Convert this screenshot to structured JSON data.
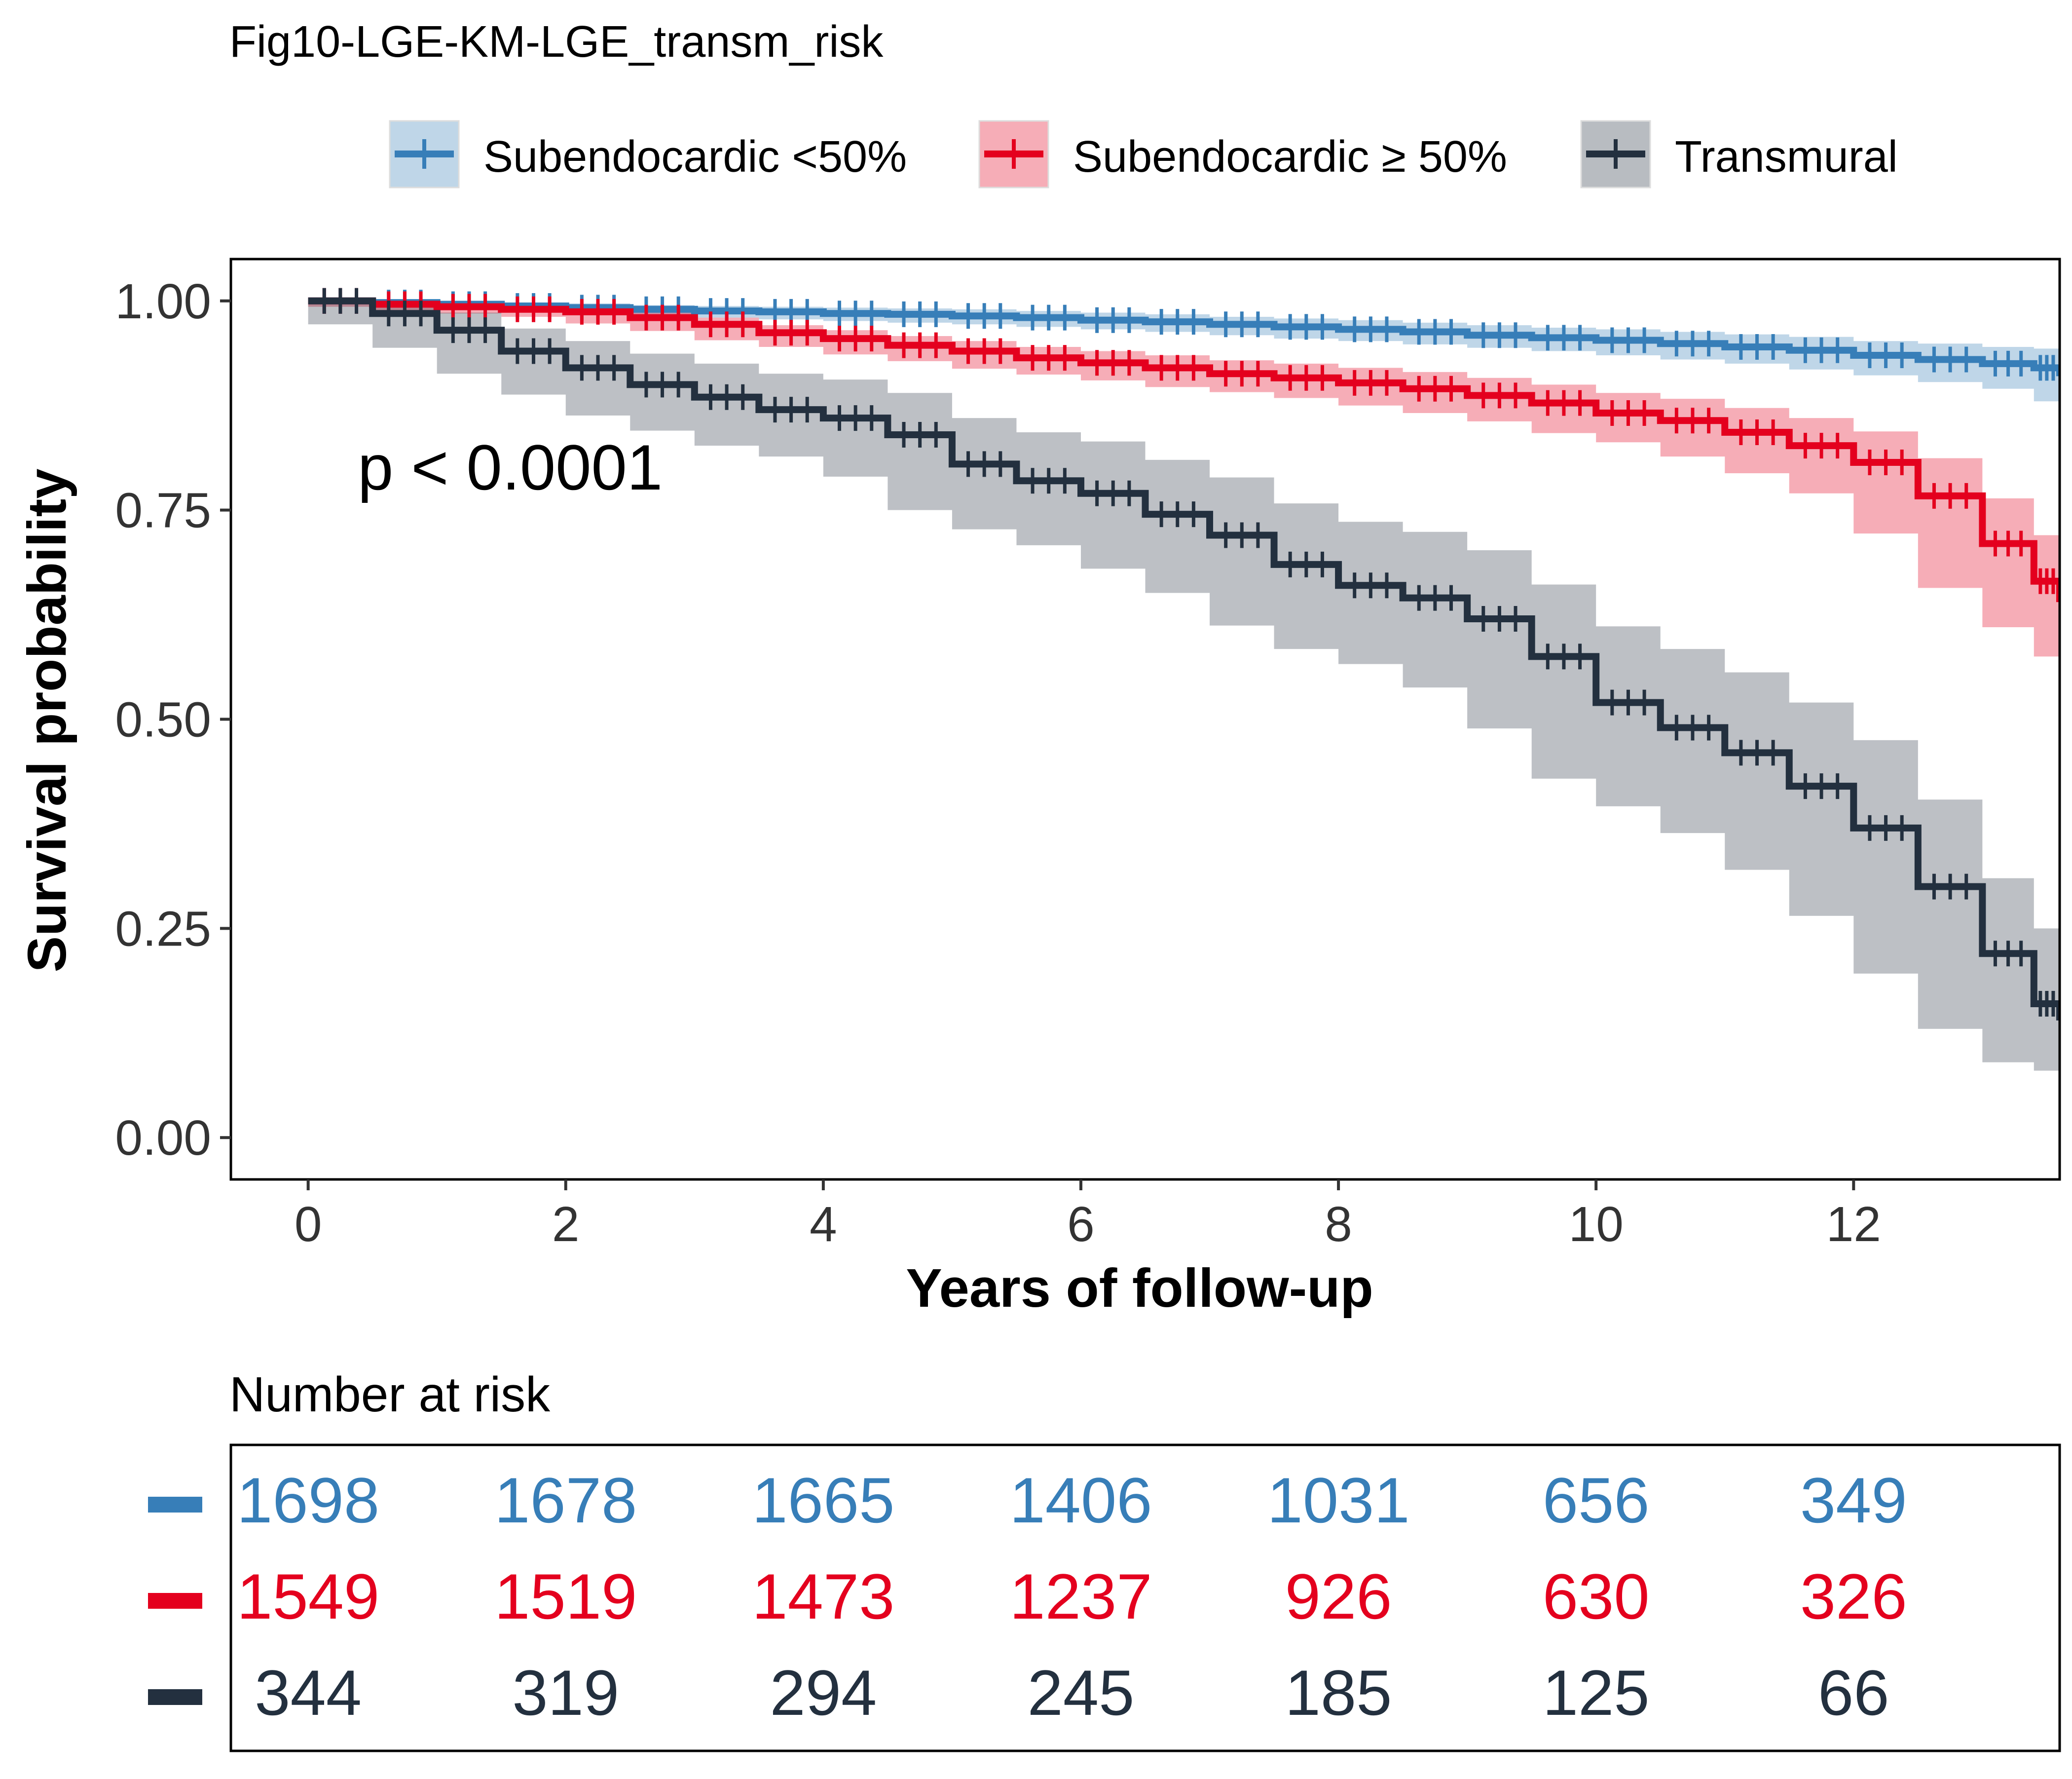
{
  "chart_data": {
    "type": "line",
    "title": "Fig10-LGE-KM-LGE_transm_risk",
    "xlabel": "Years of follow-up",
    "ylabel": "Survival probability",
    "xlim": [
      -0.6,
      13.6
    ],
    "ylim": [
      -0.05,
      1.05
    ],
    "x_ticks": [
      "0",
      "2",
      "4",
      "6",
      "8",
      "10",
      "12"
    ],
    "y_ticks": [
      "0.00",
      "0.25",
      "0.50",
      "0.75",
      "1.00"
    ],
    "legend_position": "top",
    "grid": false,
    "annotation": "p < 0.0001",
    "risk_table_title": "Number at risk",
    "risk_times": [
      0,
      2,
      4,
      6,
      8,
      10,
      12
    ],
    "series": [
      {
        "name": "Subendocardic <50%",
        "legend_label": "Subendocardic <50%",
        "color": "#377EB8",
        "x": [
          0,
          0.5,
          1,
          1.5,
          2,
          2.5,
          3,
          3.5,
          4,
          4.5,
          5,
          5.5,
          6,
          6.5,
          7,
          7.5,
          8,
          8.5,
          9,
          9.5,
          10,
          10.5,
          11,
          11.5,
          12,
          12.5,
          13,
          13.4,
          13.6
        ],
        "y": [
          1.0,
          0.998,
          0.996,
          0.994,
          0.992,
          0.99,
          0.988,
          0.987,
          0.985,
          0.984,
          0.982,
          0.98,
          0.977,
          0.975,
          0.972,
          0.969,
          0.966,
          0.963,
          0.959,
          0.956,
          0.953,
          0.949,
          0.945,
          0.941,
          0.935,
          0.93,
          0.925,
          0.92,
          0.91
        ],
        "lower": [
          1.0,
          0.996,
          0.993,
          0.99,
          0.987,
          0.985,
          0.982,
          0.98,
          0.978,
          0.976,
          0.974,
          0.972,
          0.969,
          0.966,
          0.963,
          0.959,
          0.955,
          0.952,
          0.948,
          0.944,
          0.94,
          0.935,
          0.93,
          0.925,
          0.918,
          0.911,
          0.903,
          0.895,
          0.88
        ],
        "upper": [
          1.0,
          1.0,
          0.999,
          0.998,
          0.997,
          0.995,
          0.994,
          0.993,
          0.992,
          0.991,
          0.99,
          0.988,
          0.986,
          0.984,
          0.981,
          0.979,
          0.977,
          0.974,
          0.971,
          0.968,
          0.966,
          0.963,
          0.96,
          0.957,
          0.952,
          0.949,
          0.945,
          0.943,
          0.94
        ],
        "at_risk": [
          "1698",
          "1678",
          "1665",
          "1406",
          "1031",
          "656",
          "349"
        ]
      },
      {
        "name": "Subendocardic ≥ 50%",
        "legend_label": "Subendocardic ≥ 50%",
        "color": "#E4001E",
        "x": [
          0,
          0.5,
          1,
          1.5,
          2,
          2.5,
          3,
          3.5,
          4,
          4.5,
          5,
          5.5,
          6,
          6.5,
          7,
          7.5,
          8,
          8.5,
          9,
          9.5,
          10,
          10.5,
          11,
          11.5,
          12,
          12.5,
          13,
          13.4,
          13.6
        ],
        "y": [
          1.0,
          0.996,
          0.993,
          0.99,
          0.987,
          0.98,
          0.972,
          0.962,
          0.955,
          0.947,
          0.94,
          0.932,
          0.926,
          0.92,
          0.913,
          0.908,
          0.902,
          0.895,
          0.887,
          0.878,
          0.866,
          0.857,
          0.843,
          0.827,
          0.807,
          0.767,
          0.71,
          0.665,
          0.64
        ],
        "lower": [
          1.0,
          0.993,
          0.989,
          0.985,
          0.981,
          0.973,
          0.964,
          0.953,
          0.945,
          0.936,
          0.928,
          0.919,
          0.912,
          0.905,
          0.897,
          0.891,
          0.884,
          0.875,
          0.866,
          0.856,
          0.842,
          0.831,
          0.814,
          0.794,
          0.77,
          0.722,
          0.657,
          0.61,
          0.575
        ],
        "upper": [
          1.0,
          0.999,
          0.997,
          0.995,
          0.993,
          0.987,
          0.98,
          0.971,
          0.965,
          0.958,
          0.952,
          0.945,
          0.94,
          0.935,
          0.929,
          0.925,
          0.92,
          0.915,
          0.908,
          0.9,
          0.89,
          0.883,
          0.872,
          0.86,
          0.844,
          0.812,
          0.764,
          0.72,
          0.705
        ],
        "at_risk": [
          "1549",
          "1519",
          "1473",
          "1237",
          "926",
          "630",
          "326"
        ]
      },
      {
        "name": "Transmural",
        "legend_label": "Transmural",
        "color": "#23303F",
        "x": [
          0,
          0.5,
          1,
          1.5,
          2,
          2.5,
          3,
          3.5,
          4,
          4.5,
          5,
          5.5,
          6,
          6.5,
          7,
          7.5,
          8,
          8.5,
          9,
          9.5,
          10,
          10.5,
          11,
          11.5,
          12,
          12.5,
          13,
          13.4,
          13.6
        ],
        "y": [
          1.0,
          0.985,
          0.965,
          0.94,
          0.92,
          0.9,
          0.885,
          0.87,
          0.86,
          0.84,
          0.805,
          0.785,
          0.77,
          0.745,
          0.72,
          0.685,
          0.66,
          0.645,
          0.62,
          0.575,
          0.52,
          0.49,
          0.46,
          0.42,
          0.37,
          0.3,
          0.22,
          0.16,
          0.14
        ],
        "lower": [
          1.0,
          0.972,
          0.944,
          0.913,
          0.888,
          0.863,
          0.845,
          0.827,
          0.814,
          0.79,
          0.75,
          0.727,
          0.708,
          0.68,
          0.651,
          0.612,
          0.584,
          0.566,
          0.538,
          0.489,
          0.429,
          0.396,
          0.364,
          0.32,
          0.265,
          0.196,
          0.13,
          0.09,
          0.08
        ],
        "upper": [
          1.0,
          0.998,
          0.986,
          0.967,
          0.952,
          0.937,
          0.925,
          0.913,
          0.906,
          0.89,
          0.86,
          0.843,
          0.832,
          0.81,
          0.789,
          0.758,
          0.736,
          0.724,
          0.702,
          0.661,
          0.611,
          0.584,
          0.556,
          0.52,
          0.475,
          0.404,
          0.31,
          0.25,
          0.23
        ],
        "at_risk": [
          "344",
          "319",
          "294",
          "245",
          "185",
          "125",
          "66"
        ]
      }
    ]
  }
}
